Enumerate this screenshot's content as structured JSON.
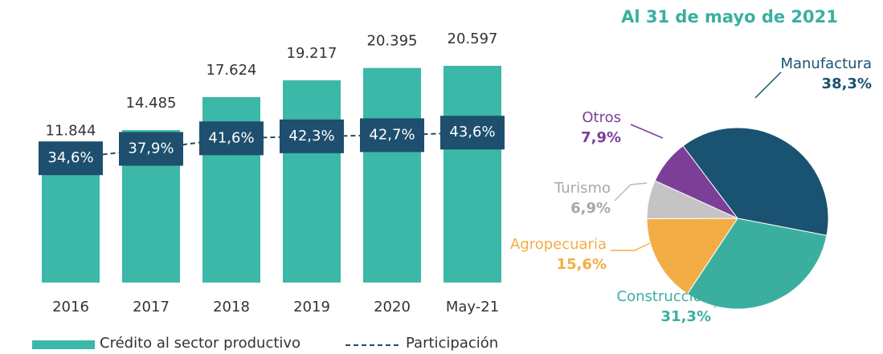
{
  "chart_data": [
    {
      "type": "bar",
      "categories": [
        "2016",
        "2017",
        "2018",
        "2019",
        "2020",
        "May-21"
      ],
      "series": [
        {
          "name": "Crédito al sector productivo",
          "color": "#3bb8a8",
          "values": [
            11844,
            14485,
            17624,
            19217,
            20395,
            20597
          ],
          "value_labels": [
            "11.844",
            "14.485",
            "17.624",
            "19.217",
            "20.395",
            "20.597"
          ]
        },
        {
          "name": "Participación",
          "type": "line",
          "color": "#1e4f6e",
          "dashed": true,
          "values": [
            34.6,
            37.9,
            41.6,
            42.3,
            42.7,
            43.6
          ],
          "value_labels": [
            "34,6%",
            "37,9%",
            "41,6%",
            "42,3%",
            "42,7%",
            "43,6%"
          ]
        }
      ]
    },
    {
      "type": "pie",
      "title": "Al 31 de mayo de 2021",
      "categories": [
        "Manufactura",
        "Construcción",
        "Agropecuaria",
        "Turismo",
        "Otros"
      ],
      "values": [
        38.3,
        31.3,
        15.6,
        6.9,
        7.9
      ],
      "value_labels": [
        "38,3%",
        "31,3%",
        "15,6%",
        "6,9%",
        "7,9%"
      ],
      "colors": [
        "#1a5272",
        "#3aafa0",
        "#f2ae45",
        "#c4c4c4",
        "#7b3f98"
      ],
      "label_colors": [
        "#1a5272",
        "#3aafa0",
        "#f2ae45",
        "#a8a8a8",
        "#7b3f98"
      ]
    }
  ]
}
